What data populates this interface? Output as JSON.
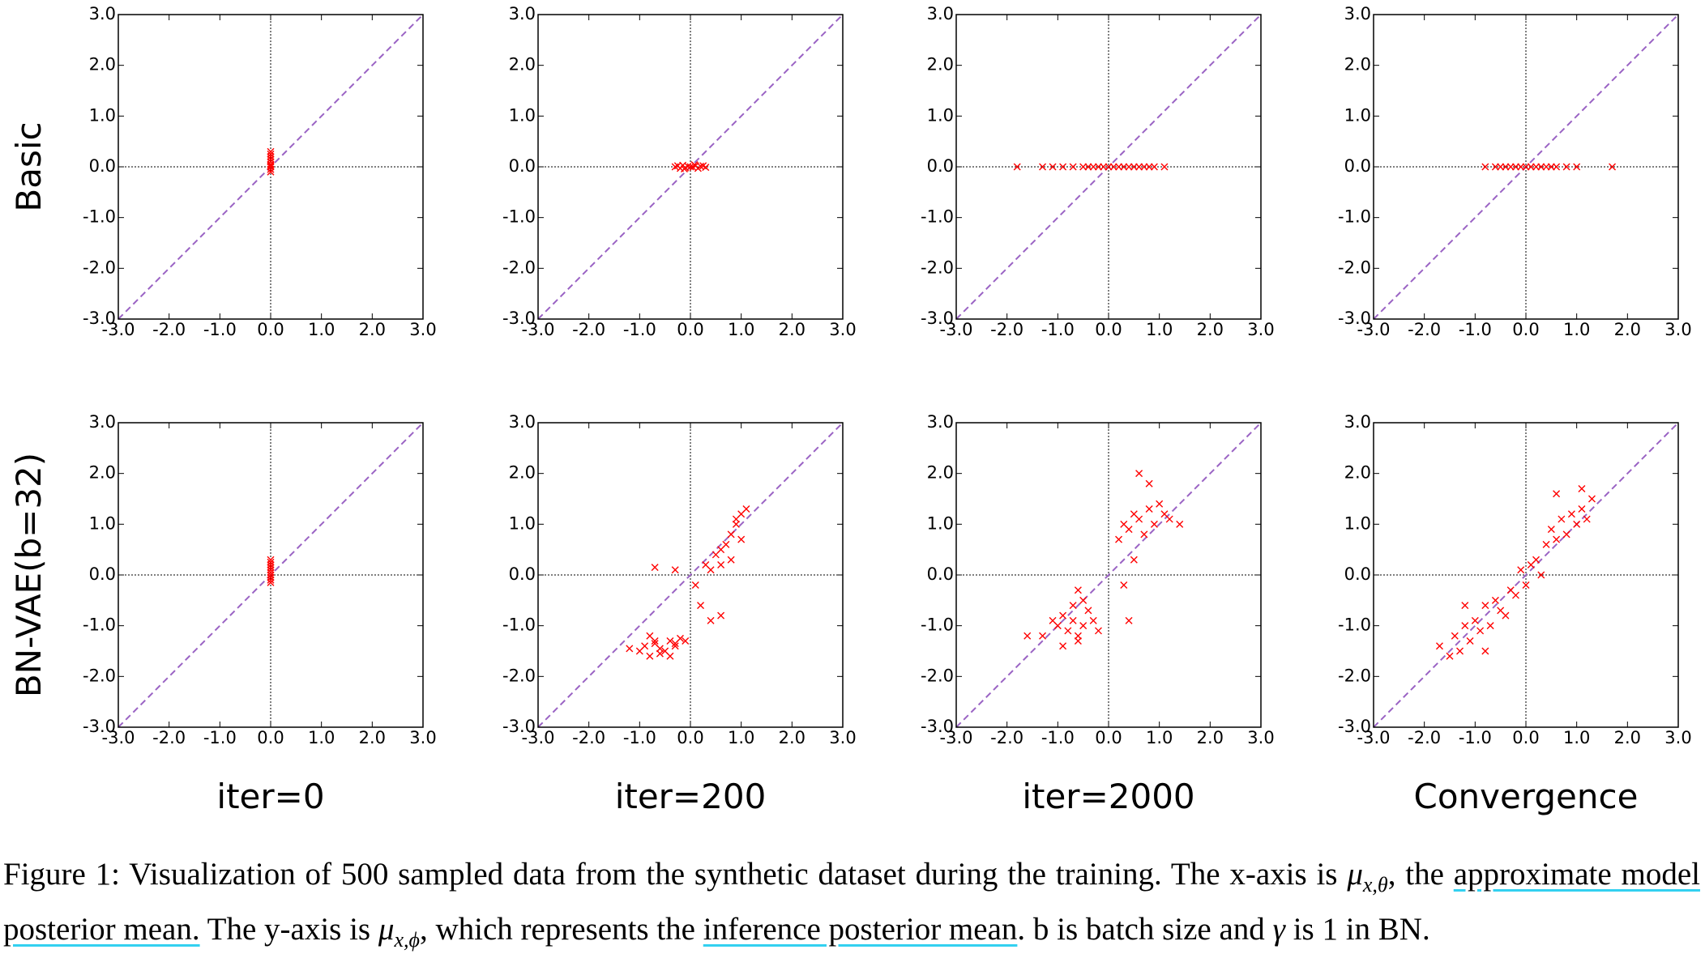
{
  "chart_data": {
    "type": "scatter",
    "xlim": [
      -3,
      3
    ],
    "ylim": [
      -3,
      3
    ],
    "xticks": [
      {
        "value": -3,
        "label": "-3.0"
      },
      {
        "value": -2,
        "label": "-2.0"
      },
      {
        "value": -1,
        "label": "-1.0"
      },
      {
        "value": 0,
        "label": "0.0"
      },
      {
        "value": 1,
        "label": "1.0"
      },
      {
        "value": 2,
        "label": "2.0"
      },
      {
        "value": 3,
        "label": "3.0"
      }
    ],
    "yticks": [
      {
        "value": -3,
        "label": "-3.0"
      },
      {
        "value": -2,
        "label": "-2.0"
      },
      {
        "value": -1,
        "label": "-1.0"
      },
      {
        "value": 0,
        "label": "0.0"
      },
      {
        "value": 1,
        "label": "1.0"
      },
      {
        "value": 2,
        "label": "2.0"
      },
      {
        "value": 3,
        "label": "3.0"
      }
    ],
    "zero_lines": true,
    "diagonal": true,
    "diagonal_color": "#9a63c4",
    "color": "#ff0000",
    "row_labels": [
      "Basic",
      "BN-VAE(b=32)"
    ],
    "column_labels": [
      "iter=0",
      "iter=200",
      "iter=2000",
      "Convergence"
    ],
    "panels": [
      {
        "x": [
          0,
          0,
          0,
          0,
          0,
          0,
          0,
          0,
          0,
          0
        ],
        "y": [
          -0.1,
          -0.05,
          0,
          0.05,
          0.1,
          0.15,
          0.2,
          0.25,
          0.3,
          0.02
        ]
      },
      {
        "x": [
          -0.3,
          -0.25,
          -0.2,
          -0.15,
          -0.1,
          -0.05,
          0,
          0.05,
          0.1,
          0.15,
          0.2,
          0.25,
          0.3,
          -0.12,
          0.08
        ],
        "y": [
          0,
          0.02,
          -0.03,
          0.03,
          -0.02,
          0.01,
          0,
          -0.01,
          0.02,
          -0.03,
          0.01,
          0.02,
          -0.01,
          -0.04,
          0.04
        ]
      },
      {
        "x": [
          -1.8,
          -1.3,
          -1.1,
          -0.9,
          -0.7,
          -0.5,
          -0.4,
          -0.3,
          -0.2,
          -0.1,
          0,
          0.1,
          0.2,
          0.3,
          0.4,
          0.5,
          0.6,
          0.7,
          0.8,
          0.9,
          1.1
        ],
        "y": [
          0,
          0,
          0,
          0,
          0,
          0,
          0,
          0,
          0,
          0,
          0,
          0,
          0,
          0,
          0,
          0,
          0,
          0,
          0,
          0,
          0
        ]
      },
      {
        "x": [
          -0.8,
          -0.6,
          -0.5,
          -0.4,
          -0.3,
          -0.2,
          -0.1,
          0,
          0.1,
          0.2,
          0.3,
          0.4,
          0.5,
          0.6,
          0.8,
          1.0,
          1.7
        ],
        "y": [
          0,
          0,
          0,
          0,
          0,
          0,
          0,
          0,
          0,
          0,
          0,
          0,
          0,
          0,
          0,
          0,
          0
        ]
      },
      {
        "x": [
          0,
          0,
          0,
          0,
          0,
          0,
          0,
          0,
          0,
          0
        ],
        "y": [
          -0.15,
          -0.1,
          -0.05,
          0,
          0.05,
          0.1,
          0.15,
          0.2,
          0.25,
          0.3
        ]
      },
      {
        "x": [
          -1.2,
          -1.0,
          -0.9,
          -0.8,
          -0.7,
          -0.6,
          -0.5,
          -0.4,
          -0.3,
          -0.2,
          -0.1,
          -0.8,
          -0.6,
          -0.4,
          -0.7,
          -0.3,
          0.1,
          0.2,
          0.3,
          0.4,
          0.5,
          0.6,
          0.7,
          0.8,
          0.9,
          1.0,
          1.1,
          0.6,
          0.8,
          1.0,
          0.4,
          0.9,
          -0.7,
          -0.3,
          0.6
        ],
        "y": [
          -1.45,
          -1.5,
          -1.4,
          -1.6,
          -1.35,
          -1.45,
          -1.5,
          -1.3,
          -1.35,
          -1.25,
          -1.3,
          -1.2,
          -1.55,
          -1.6,
          -1.3,
          -1.4,
          -0.2,
          -0.6,
          0.2,
          0.1,
          0.4,
          0.5,
          0.6,
          0.8,
          1.0,
          1.2,
          1.3,
          0.2,
          0.3,
          0.7,
          -0.9,
          1.1,
          0.15,
          0.1,
          -0.8
        ]
      },
      {
        "x": [
          -1.3,
          -1.1,
          -1.0,
          -0.9,
          -0.8,
          -0.7,
          -0.6,
          -0.5,
          -0.4,
          -0.3,
          -0.2,
          -0.9,
          -0.7,
          -0.5,
          -0.6,
          0.2,
          0.3,
          0.4,
          0.5,
          0.6,
          0.7,
          0.8,
          0.9,
          1.0,
          1.1,
          1.2,
          1.4,
          0.6,
          0.8,
          -1.6,
          0.3,
          0.5,
          -0.6,
          0.4
        ],
        "y": [
          -1.2,
          -0.9,
          -1.0,
          -0.8,
          -1.1,
          -0.9,
          -1.3,
          -1.0,
          -0.7,
          -0.9,
          -1.1,
          -1.4,
          -0.6,
          -0.5,
          -1.2,
          0.7,
          1.0,
          0.9,
          1.2,
          1.1,
          0.8,
          1.3,
          1.0,
          1.4,
          1.2,
          1.1,
          1.0,
          2.0,
          1.8,
          -1.2,
          -0.2,
          0.3,
          -0.3,
          -0.9
        ]
      },
      {
        "x": [
          -1.7,
          -1.5,
          -1.4,
          -1.3,
          -1.2,
          -1.1,
          -1.0,
          -0.9,
          -0.8,
          -0.7,
          -0.6,
          -0.5,
          -0.4,
          -0.3,
          -0.2,
          -0.1,
          0,
          0.1,
          0.2,
          0.3,
          0.4,
          0.5,
          0.6,
          0.7,
          0.8,
          0.9,
          1.0,
          1.1,
          1.2,
          1.3,
          -1.2,
          -0.8,
          0.6,
          1.1
        ],
        "y": [
          -1.4,
          -1.6,
          -1.2,
          -1.5,
          -1.0,
          -1.3,
          -0.9,
          -1.1,
          -0.6,
          -1.0,
          -0.5,
          -0.7,
          -0.8,
          -0.3,
          -0.4,
          0.1,
          -0.2,
          0.2,
          0.3,
          0.0,
          0.6,
          0.9,
          0.7,
          1.1,
          0.8,
          1.2,
          1.0,
          1.3,
          1.1,
          1.5,
          -0.6,
          -1.5,
          1.6,
          1.7
        ]
      }
    ]
  },
  "caption": {
    "text_1": "Figure 1: Visualization of 500 sampled data from the synthetic dataset during the training. The x-axis is ",
    "math_1": {
      "base": "μ",
      "sub": "x,θ"
    },
    "text_2": ", the ",
    "highlight_1": "approximate model posterior mean.",
    "text_3": " The y-axis is ",
    "math_2": {
      "base": "μ",
      "sub": "x,ϕ"
    },
    "text_4": ", which represents the ",
    "highlight_2": "inference posterior mean",
    "text_5": ". b is batch size and ",
    "math_3": "γ",
    "text_6": " is 1 in BN."
  }
}
